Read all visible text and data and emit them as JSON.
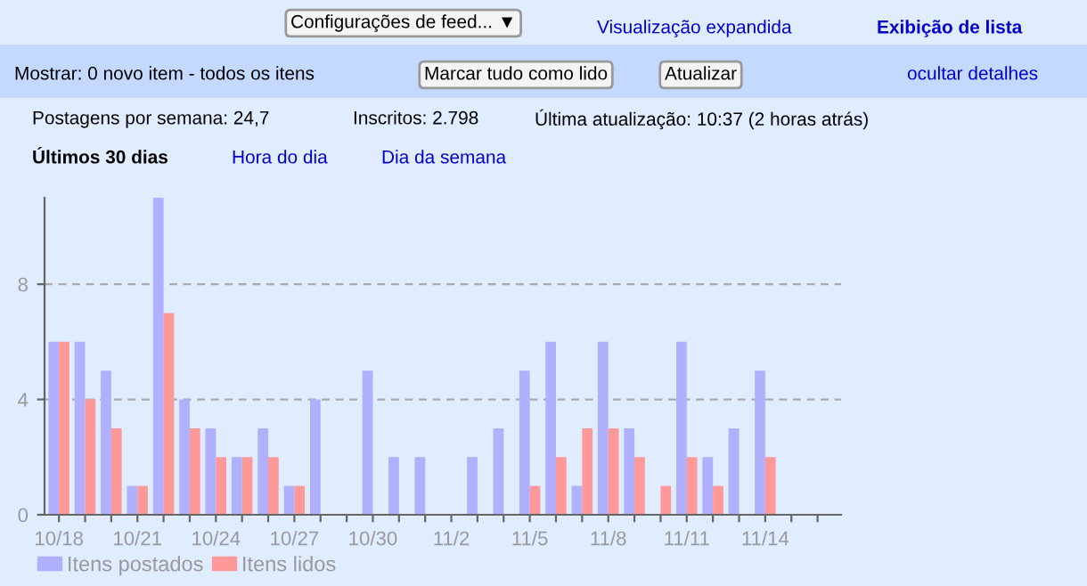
{
  "chart_data": {
    "type": "bar",
    "categories": [
      "10/18",
      null,
      null,
      "10/21",
      null,
      null,
      "10/24",
      null,
      null,
      "10/27",
      null,
      null,
      "10/30",
      null,
      null,
      "11/2",
      null,
      null,
      "11/5",
      null,
      null,
      "11/8",
      null,
      null,
      "11/11",
      null,
      null,
      "11/14",
      null,
      null
    ],
    "series": [
      {
        "name": "Itens postados",
        "color": "#b0b0ff",
        "values": [
          6,
          6,
          5,
          1,
          11,
          4,
          3,
          2,
          3,
          1,
          4,
          0,
          5,
          2,
          2,
          0,
          2,
          3,
          5,
          6,
          1,
          6,
          3,
          0,
          6,
          2,
          3,
          5,
          0,
          0
        ]
      },
      {
        "name": "Itens lidos",
        "color": "#ff9999",
        "values": [
          6,
          4,
          3,
          1,
          7,
          3,
          2,
          2,
          2,
          1,
          0,
          0,
          0,
          0,
          0,
          0,
          0,
          0,
          1,
          2,
          3,
          3,
          2,
          1,
          2,
          1,
          0,
          2,
          0,
          0
        ]
      }
    ],
    "ylim": [
      0,
      11
    ],
    "yticks": [
      0,
      4,
      8
    ],
    "grid": "y",
    "legend": "bottom left",
    "annotations": [
      "Configurações de feed... ▼",
      "Visualização expandida",
      "Exibição de lista",
      "Mostrar: 0 novo item - todos os itens",
      "Marcar tudo como lido",
      "Atualizar",
      "ocultar detalhes",
      "Postagens por semana: 24,7",
      "Inscritos: 2.798",
      "Última atualização: 10:37 (2 horas atrás)",
      "Últimos 30 dias",
      "Hora do dia",
      "Dia da semana"
    ]
  }
}
